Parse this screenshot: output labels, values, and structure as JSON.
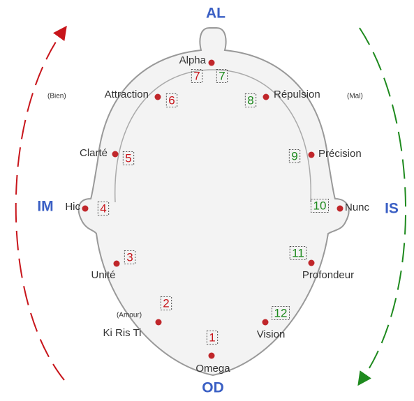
{
  "poles": {
    "top": "AL",
    "bottom": "OD",
    "left": "IM",
    "right": "IS"
  },
  "points": [
    {
      "label": "Alpha"
    },
    {
      "label": "Attraction",
      "note": "(Bien)"
    },
    {
      "label": "Répulsion",
      "note": "(Mal)"
    },
    {
      "label": "Clarté"
    },
    {
      "label": "Précision"
    },
    {
      "label": "Hic"
    },
    {
      "label": "Nunc"
    },
    {
      "label": "Unité"
    },
    {
      "label": "Profondeur"
    },
    {
      "label": "Ki Ris Ti",
      "note": "(Amour)"
    },
    {
      "label": "Vision"
    },
    {
      "label": "Omega"
    }
  ],
  "numbers": [
    "7",
    "7",
    "6",
    "8",
    "5",
    "9",
    "4",
    "10",
    "3",
    "11",
    "2",
    "12",
    "1"
  ]
}
